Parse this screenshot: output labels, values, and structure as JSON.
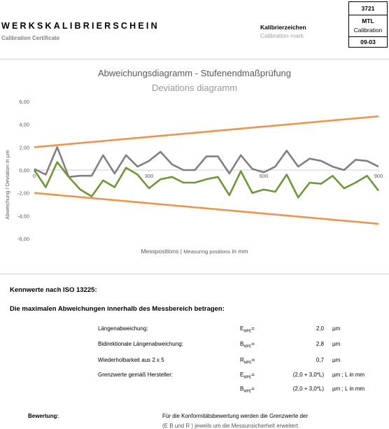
{
  "header": {
    "title": "WERKSKALIBRIERSCHEIN",
    "subtitle": "Calibration Certificate",
    "mark_de": "Kalibrierzeichen",
    "mark_en": "Calibration mark",
    "box": {
      "number": "3721",
      "lab": "MTL",
      "lab_sub": "Calibration",
      "date": "09-03"
    }
  },
  "chart": {
    "title_de": "Abweichungsdiagramm - Stufenendmaßprüfung",
    "title_en": "Deviations diagramm",
    "ylabel": "Abweichung / Deviation in µm",
    "xlabel_de": "Messpositions",
    "xlabel_sep": "|",
    "xlabel_en": "Measuring positions",
    "xlabel_unit": "in mm",
    "y_ticks": [
      "6,00",
      "4,00",
      "2,00",
      "0,00",
      "-2,00",
      "-4,00",
      "-6,00"
    ],
    "x_ticks": [
      "0",
      "300",
      "600",
      "900"
    ],
    "colors": {
      "limits": "#f0944d",
      "gray": "#808080",
      "green": "#6e963a"
    }
  },
  "chart_data": {
    "type": "line",
    "ylim": [
      -6,
      6
    ],
    "xlim": [
      0,
      900
    ],
    "series": [
      {
        "color": "#f0944d",
        "x": [
          0,
          900
        ],
        "y": [
          2.0,
          4.7
        ]
      },
      {
        "color": "#f0944d",
        "x": [
          0,
          900
        ],
        "y": [
          -2.0,
          -4.7
        ]
      },
      {
        "color": "#808080",
        "x": [
          0,
          30,
          60,
          90,
          120,
          150,
          180,
          210,
          240,
          270,
          300,
          330,
          360,
          390,
          420,
          450,
          480,
          510,
          540,
          570,
          600,
          630,
          660,
          690,
          720,
          750,
          780,
          810,
          840,
          870,
          900
        ],
        "y": [
          0.1,
          -0.4,
          2.0,
          -0.6,
          -0.5,
          -0.5,
          1.3,
          -0.3,
          1.3,
          0.3,
          0.8,
          1.6,
          0.5,
          0.0,
          0.0,
          1.2,
          1.2,
          -0.3,
          1.3,
          0.1,
          -0.2,
          0.3,
          1.7,
          0.3,
          1.0,
          0.8,
          0.3,
          0.0,
          0.9,
          0.8,
          0.3
        ]
      },
      {
        "color": "#6e963a",
        "x": [
          0,
          30,
          60,
          90,
          120,
          150,
          180,
          210,
          240,
          270,
          300,
          330,
          360,
          390,
          420,
          450,
          480,
          510,
          540,
          570,
          600,
          630,
          660,
          690,
          720,
          750,
          780,
          810,
          840,
          870,
          900
        ],
        "y": [
          0.0,
          -1.5,
          0.7,
          -0.6,
          -1.7,
          -2.3,
          -0.9,
          -1.5,
          0.2,
          -0.4,
          -1.6,
          -0.8,
          -0.6,
          -1.1,
          -1.1,
          -0.8,
          -0.6,
          -2.2,
          -0.1,
          -2.0,
          -1.7,
          -1.9,
          -0.4,
          -2.4,
          -1.1,
          -1.2,
          -0.5,
          -1.6,
          -1.1,
          -0.5,
          -1.8
        ]
      }
    ]
  },
  "kennwerte": {
    "heading": "Kennwerte nach ISO 13225:",
    "subheading": "Die maximalen Abweichungen innerhalb des Messbereich betragen:",
    "rows": [
      {
        "label": "Längenabweichung:",
        "sym": "E",
        "sub": "MPE",
        "eq": "=",
        "value": "2,0",
        "unit": "µm"
      },
      {
        "label": "Bidirektionale Längenabweichung:",
        "sym": "B",
        "sub": "MPE",
        "eq": "=",
        "value": "2,8",
        "unit": "µm"
      },
      {
        "label": "Wiederholbarkeit aus 2 x 5 Messungen",
        "sym": "R",
        "sub": "MPE",
        "eq": "=",
        "value": "0,7",
        "unit": "µm"
      },
      {
        "label": "Grenzwerte gemäß Hersteller:",
        "sym": "E",
        "sub": "MPE",
        "eq": "=",
        "value": "(2,0 + 3,0*L)",
        "unit": "µm ; L in mm"
      },
      {
        "label": "",
        "sym": "B",
        "sub": "MPE",
        "eq": "=",
        "value": "(2,0 + 3,0*L)",
        "unit": "µm ; L in mm"
      }
    ]
  },
  "bewertung": {
    "label": "Bewertung:",
    "text": "Für die Konformitätsbewertung werden die Grenzwerte der",
    "text2": "(E     B     und R    ) jeweils um die Messunsicherheit erweitert."
  }
}
